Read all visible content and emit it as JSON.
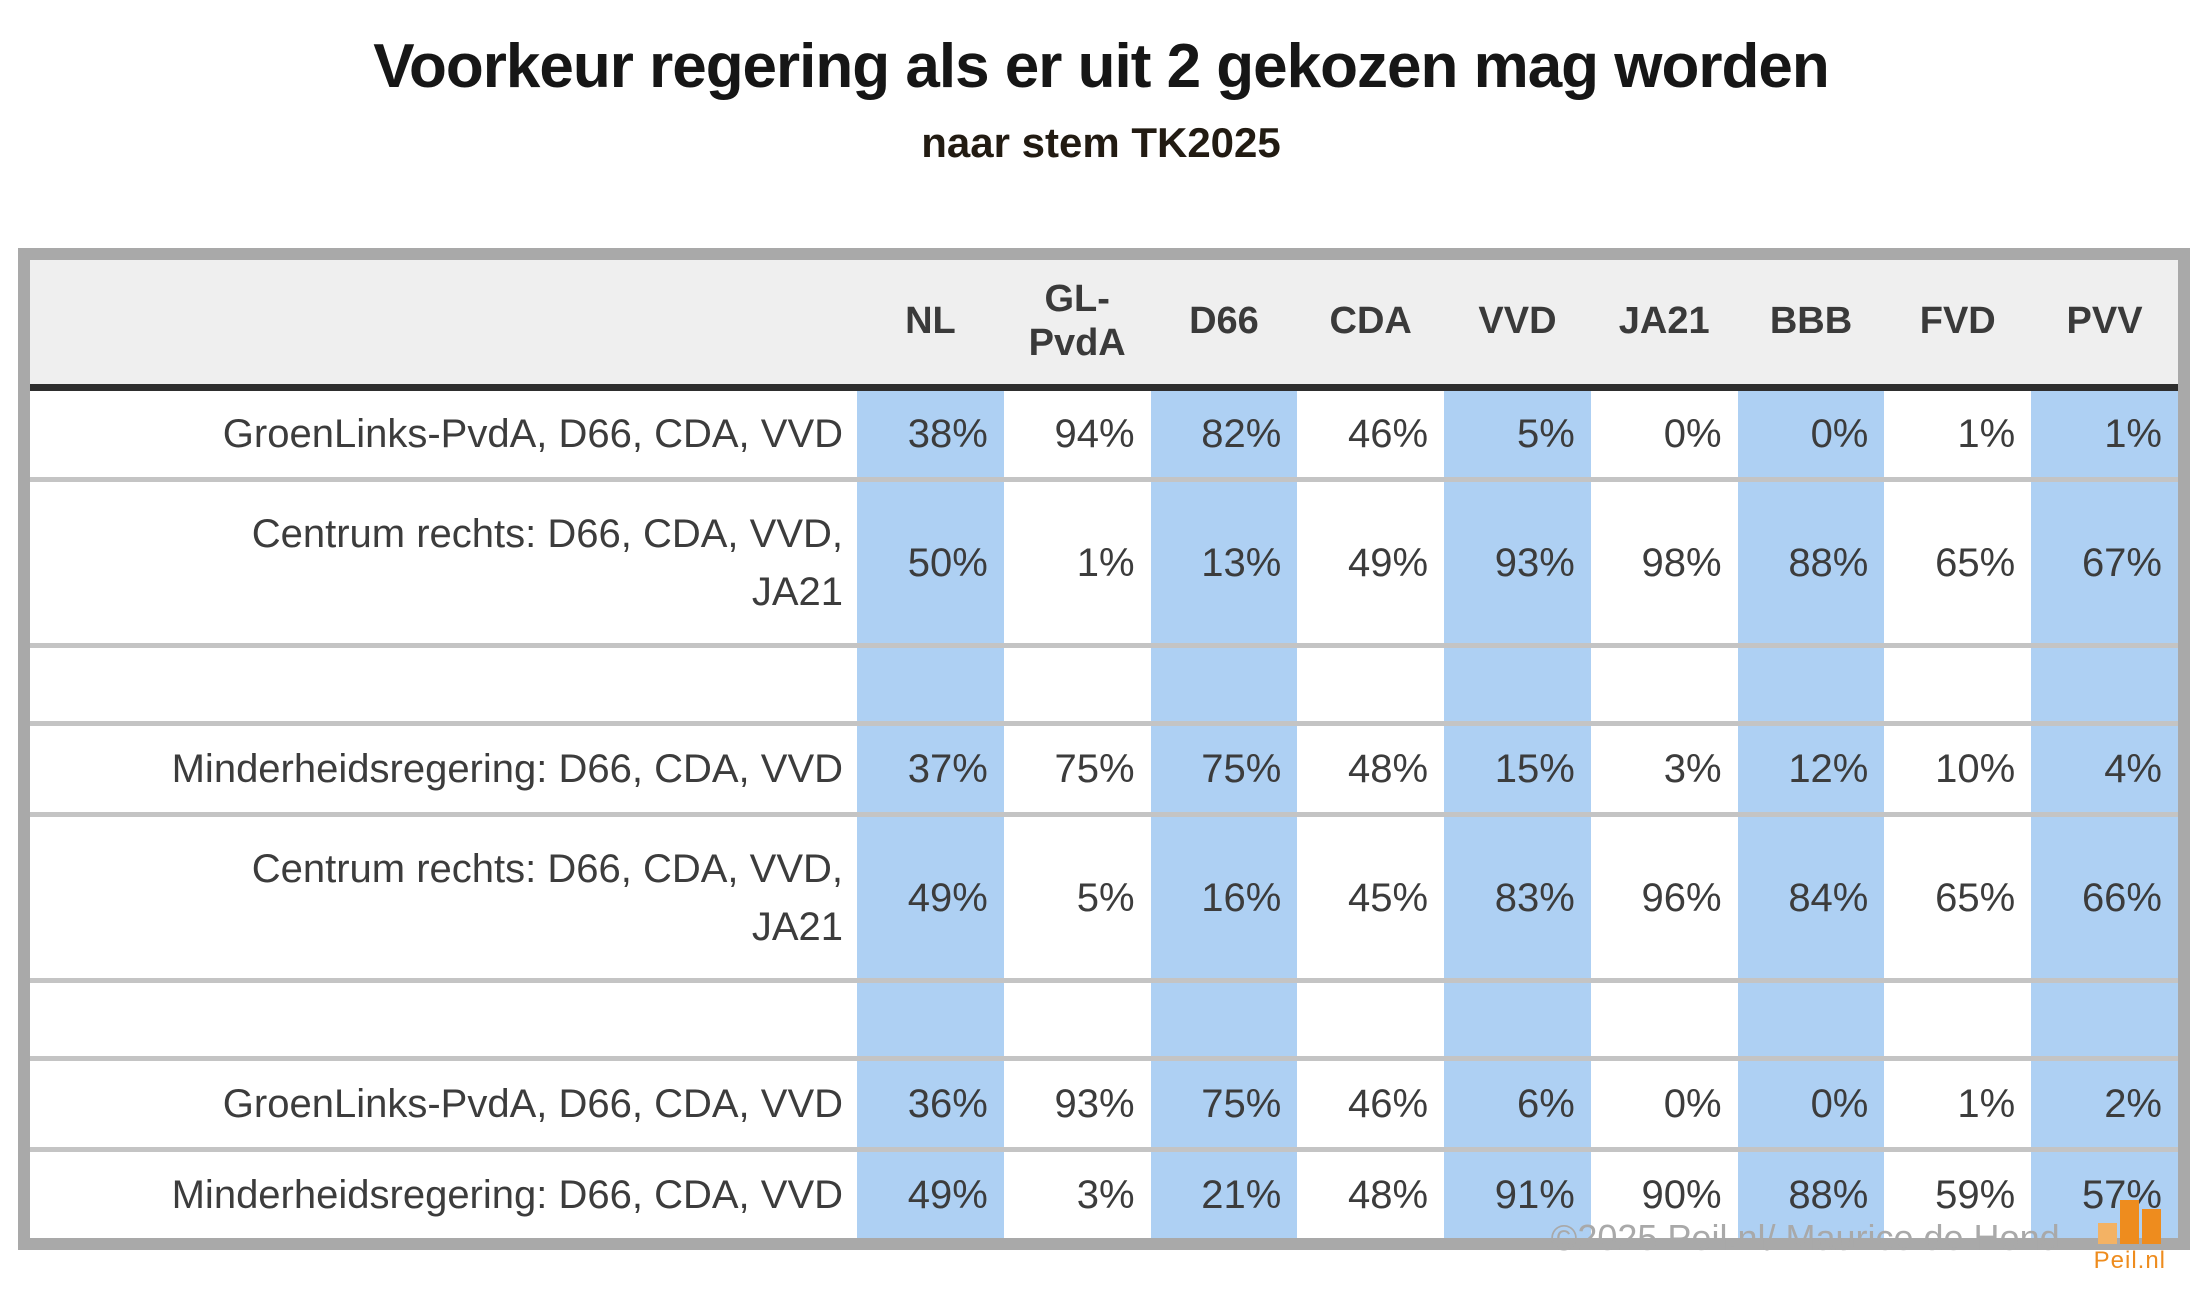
{
  "chart_data": {
    "type": "table",
    "title": "Voorkeur regering als er uit 2 gekozen mag worden",
    "subtitle": "naar stem TK2025",
    "unit": "%",
    "columns": [
      "NL",
      "GL-PvdA",
      "D66",
      "CDA",
      "VVD",
      "JA21",
      "BBB",
      "FVD",
      "PVV"
    ],
    "highlighted_columns": [
      "NL",
      "D66",
      "VVD",
      "BBB",
      "PVV"
    ],
    "rows": [
      {
        "label": "GroenLinks-PvdA, D66, CDA, VVD",
        "values": [
          38,
          94,
          82,
          46,
          5,
          0,
          0,
          1,
          1
        ]
      },
      {
        "label": "Centrum rechts: D66, CDA, VVD,\nJA21",
        "values": [
          50,
          1,
          13,
          49,
          93,
          98,
          88,
          65,
          67
        ]
      },
      {
        "label": "",
        "values": null
      },
      {
        "label": "Minderheidsregering: D66, CDA, VVD",
        "values": [
          37,
          75,
          75,
          48,
          15,
          3,
          12,
          10,
          4
        ]
      },
      {
        "label": "Centrum rechts: D66, CDA, VVD,\nJA21",
        "values": [
          49,
          5,
          16,
          45,
          83,
          96,
          84,
          65,
          66
        ]
      },
      {
        "label": "",
        "values": null
      },
      {
        "label": "GroenLinks-PvdA, D66, CDA, VVD",
        "values": [
          36,
          93,
          75,
          46,
          6,
          0,
          0,
          1,
          2
        ]
      },
      {
        "label": "Minderheidsregering: D66, CDA, VVD",
        "values": [
          49,
          3,
          21,
          48,
          91,
          90,
          88,
          59,
          57
        ]
      }
    ]
  },
  "footer": {
    "credit": "©2025 Peil.nl/ Maurice de Hond",
    "logo_text": "Peil.nl"
  },
  "colors": {
    "highlight_column": "#aed0f3",
    "header_bg": "#efefef",
    "table_border": "#a9a9a9",
    "header_rule": "#2e2e2e",
    "row_divider": "#c4c4c4",
    "credit_gray": "#a9a9a9",
    "logo_orange": "#ee8c1e",
    "logo_orange_light": "#f3b264"
  }
}
